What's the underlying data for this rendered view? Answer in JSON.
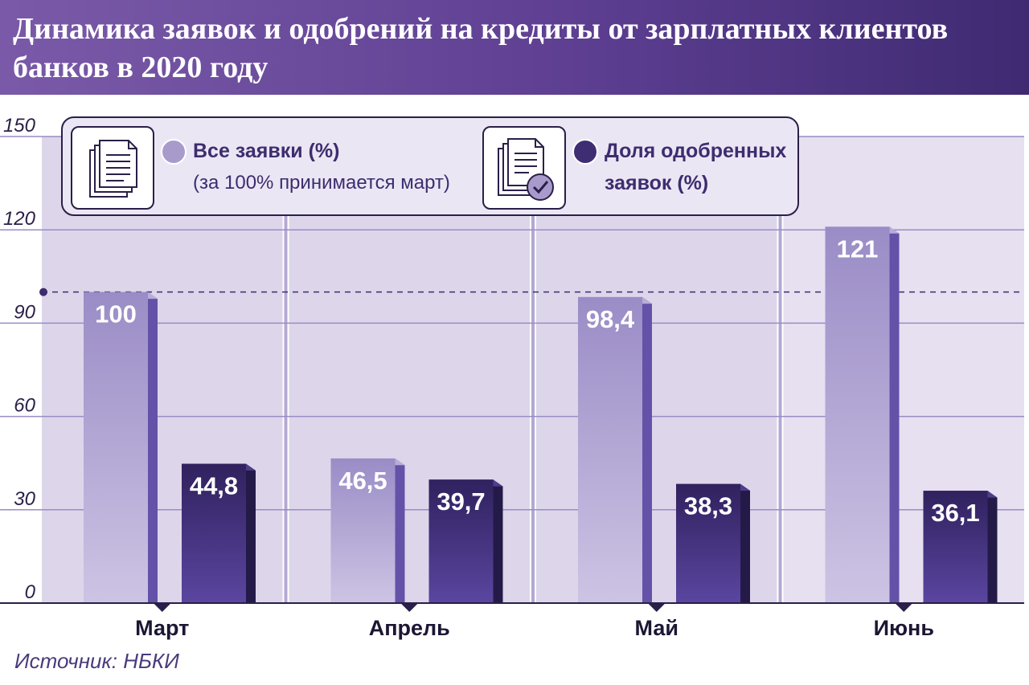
{
  "title": "Динамика заявок и одобрений на кредиты от зарплатных клиентов банков в 2020 году",
  "source": "Источник: НБКИ",
  "legend": {
    "all": {
      "label": "Все заявки (%)",
      "note": "(за 100% принимается март)",
      "icon": "document-stack-icon"
    },
    "approved": {
      "label_line1": "Доля одобренных",
      "label_line2": "заявок (%)",
      "icon": "approved-document-icon"
    }
  },
  "colors": {
    "all_applications": "#a89bcc",
    "approved_share": "#3f2d73",
    "panel_background": "#ddd6ea",
    "header": "#5e3f92"
  },
  "chart_data": {
    "type": "bar",
    "categories": [
      "Март",
      "Апрель",
      "Май",
      "Июнь"
    ],
    "series": [
      {
        "name": "Все заявки (%)",
        "values": [
          100,
          46.5,
          98.4,
          121
        ],
        "value_labels": [
          "100",
          "46,5",
          "98,4",
          "121"
        ]
      },
      {
        "name": "Доля одобренных заявок (%)",
        "values": [
          44.8,
          39.7,
          38.3,
          36.1
        ],
        "value_labels": [
          "44,8",
          "39,7",
          "38,3",
          "36,1"
        ]
      }
    ],
    "ylim": [
      0,
      150
    ],
    "yticks": [
      0,
      30,
      60,
      90,
      120,
      150
    ],
    "reference_line": 100,
    "grid": true,
    "legend_position": "top"
  }
}
